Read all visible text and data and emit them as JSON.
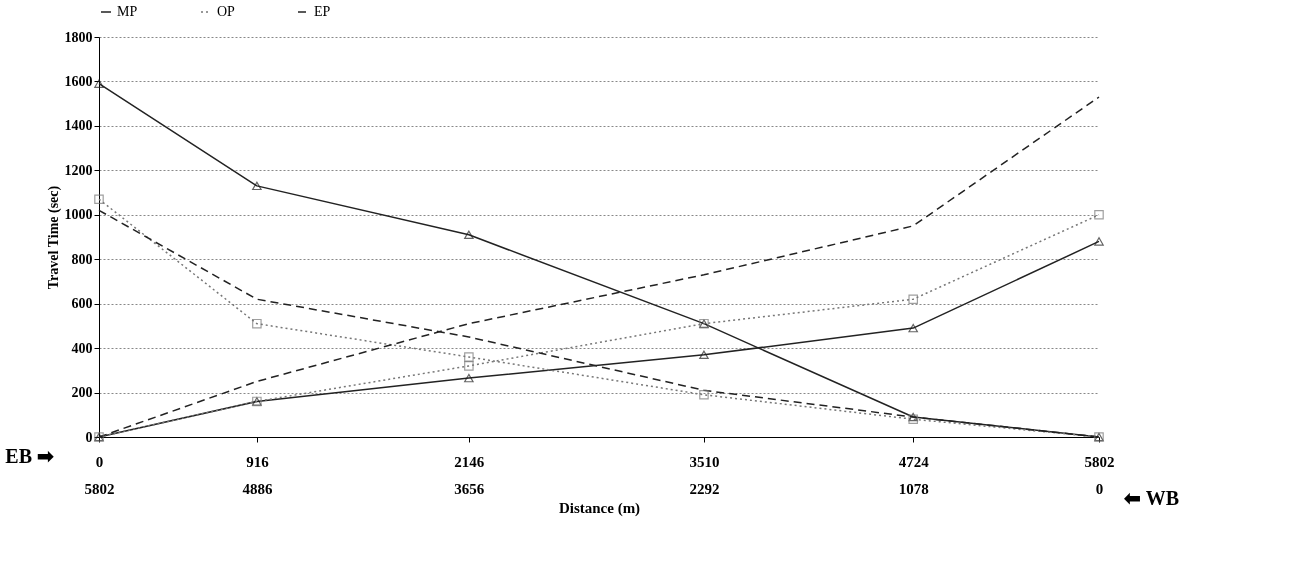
{
  "chart_data": {
    "type": "line",
    "xlabel": "Distance (m)",
    "ylabel": "Travel Time (sec)",
    "x": [
      0,
      916,
      2146,
      3510,
      4724,
      5802
    ],
    "xlim": [
      0,
      5802
    ],
    "xticks": [
      0,
      916,
      2146,
      3510,
      4724,
      5802
    ],
    "x2lim": [
      5802,
      0
    ],
    "x2ticks": [
      5802,
      4886,
      3656,
      2292,
      1078,
      0
    ],
    "ylim": [
      0,
      1800
    ],
    "yticks": [
      0,
      200,
      400,
      600,
      800,
      1000,
      1200,
      1400,
      1600,
      1800
    ],
    "grid": "y",
    "legend": "top",
    "annotations": [
      "EB ➡",
      "⬅ WB"
    ],
    "series": [
      {
        "name": "MP",
        "color": "#222222",
        "marker": "triangle",
        "line_style": "solid",
        "values": [
          1590,
          1130,
          910,
          510,
          90,
          0
        ]
      },
      {
        "color": "#222222",
        "marker": "triangle",
        "line_style": "solid",
        "values": [
          0,
          160,
          265,
          370,
          490,
          880
        ]
      },
      {
        "name": "OP",
        "color": "#777777",
        "marker": "square",
        "line_style": "dotted",
        "values": [
          1070,
          510,
          360,
          190,
          80,
          0
        ]
      },
      {
        "color": "#777777",
        "marker": "square",
        "line_style": "dotted",
        "values": [
          0,
          160,
          320,
          510,
          620,
          1000
        ]
      },
      {
        "name": "EP",
        "color": "#222222",
        "marker": "none",
        "line_style": "dashed",
        "values": [
          1020,
          620,
          450,
          210,
          90,
          0
        ]
      },
      {
        "color": "#222222",
        "marker": "none",
        "line_style": "dashed",
        "values": [
          0,
          250,
          510,
          730,
          950,
          1530
        ]
      }
    ]
  }
}
